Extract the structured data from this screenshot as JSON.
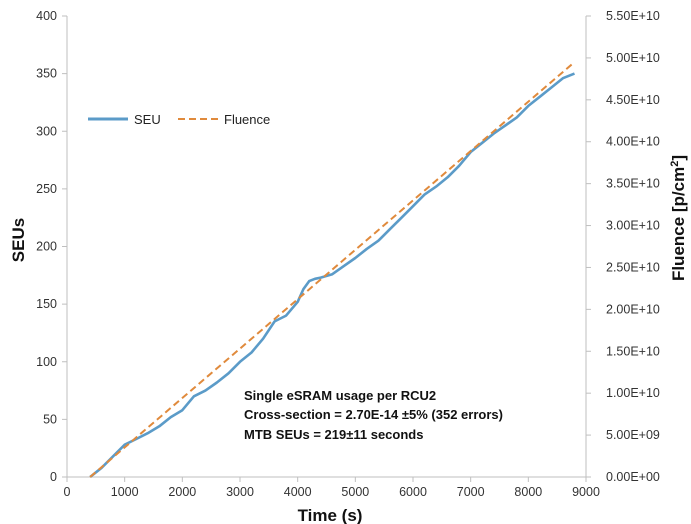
{
  "chart_data": {
    "type": "line",
    "title": "",
    "xlabel": "Time (s)",
    "ylabel": "SEUs",
    "y2label_parts": [
      "Fluence [p/cm",
      "2",
      "]"
    ],
    "xlim": [
      0,
      9000
    ],
    "ylim": [
      0,
      400
    ],
    "y2lim": [
      0,
      55000000000
    ],
    "x_ticks": [
      0,
      1000,
      2000,
      3000,
      4000,
      5000,
      6000,
      7000,
      8000,
      9000
    ],
    "y_ticks": [
      0,
      50,
      100,
      150,
      200,
      250,
      300,
      350,
      400
    ],
    "y2_tick_labels": [
      "0.00E+00",
      "5.00E+09",
      "1.00E+10",
      "1.50E+10",
      "2.00E+10",
      "2.50E+10",
      "3.00E+10",
      "3.50E+10",
      "4.00E+10",
      "4.50E+10",
      "5.00E+10",
      "5.50E+10"
    ],
    "grid": false,
    "legend_position": "top-left",
    "series": [
      {
        "name": "SEU",
        "axis": "left",
        "color": "#5b9bc8",
        "style": "solid",
        "x": [
          400,
          600,
          800,
          1000,
          1200,
          1400,
          1600,
          1800,
          2000,
          2200,
          2400,
          2600,
          2800,
          3000,
          3200,
          3400,
          3600,
          3800,
          4000,
          4100,
          4200,
          4300,
          4400,
          4600,
          4800,
          5000,
          5200,
          5400,
          5600,
          5800,
          6000,
          6200,
          6400,
          6600,
          6800,
          7000,
          7200,
          7400,
          7600,
          7800,
          8000,
          8200,
          8400,
          8600,
          8800
        ],
        "values": [
          0,
          8,
          18,
          28,
          33,
          38,
          44,
          52,
          58,
          70,
          75,
          82,
          90,
          100,
          108,
          120,
          135,
          140,
          152,
          163,
          170,
          172,
          173,
          176,
          183,
          190,
          198,
          205,
          215,
          225,
          235,
          245,
          252,
          260,
          270,
          282,
          290,
          298,
          305,
          312,
          322,
          330,
          338,
          346,
          350
        ]
      },
      {
        "name": "Fluence",
        "axis": "right",
        "color": "#e08a3c",
        "style": "dashed",
        "x": [
          400,
          8800
        ],
        "values": [
          0,
          49500000000
        ]
      }
    ]
  },
  "annotation": {
    "line1": "Single eSRAM usage per RCU2",
    "line2": "Cross-section = 2.70E-14 ±5%  (352 errors)",
    "line3": "MTB SEUs = 219±11  seconds"
  }
}
